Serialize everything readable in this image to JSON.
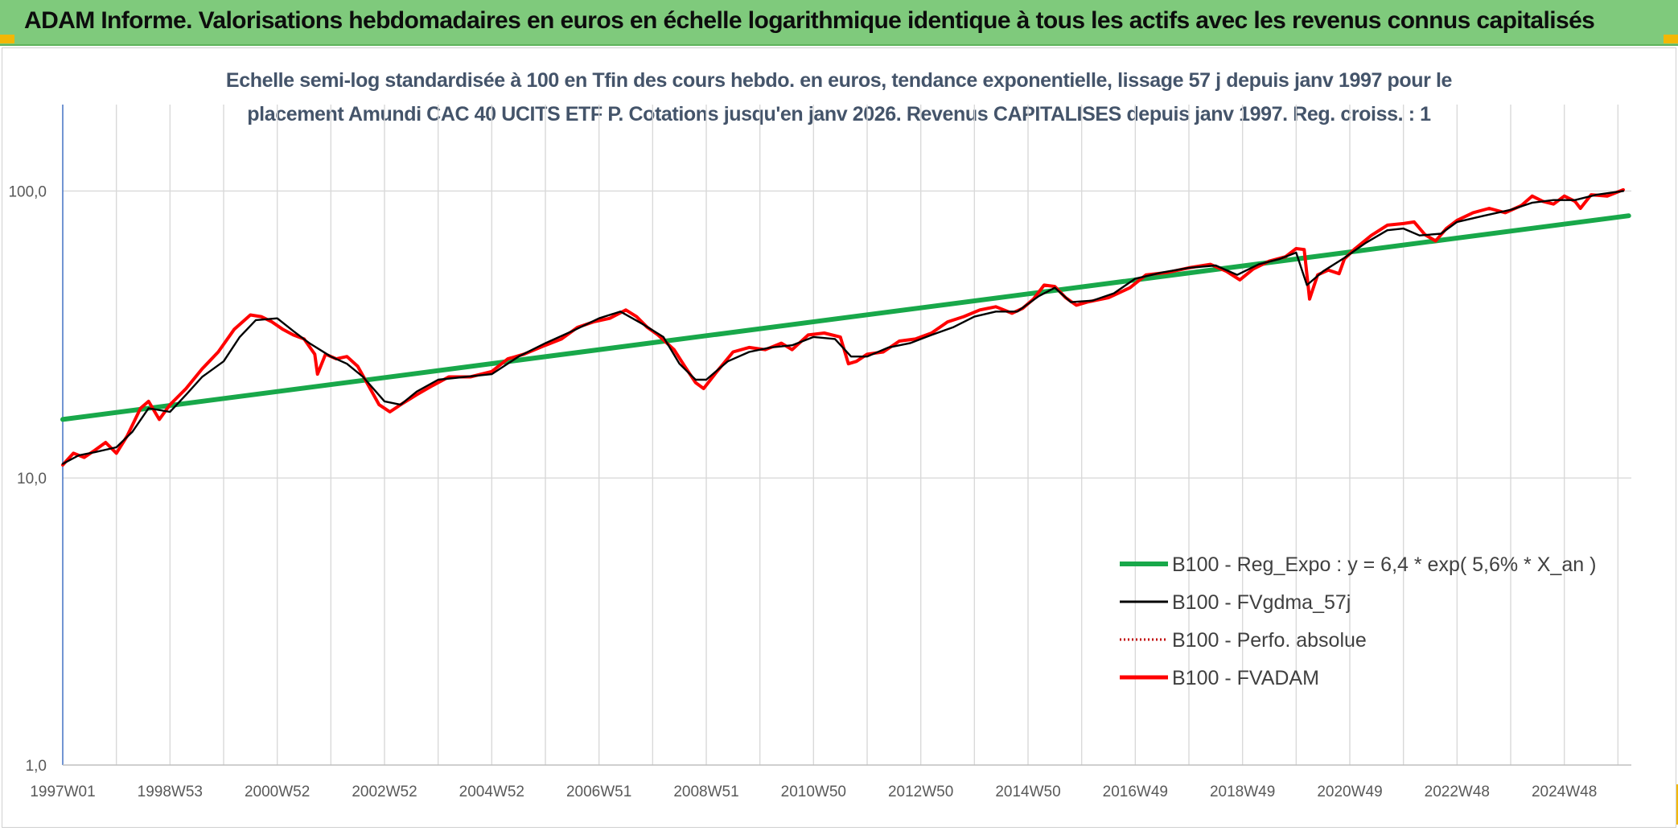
{
  "banner": {
    "title": "ADAM Informe. Valorisations hebdomadaires en euros en échelle logarithmique identique à tous les actifs avec les revenus connus capitalisés"
  },
  "chart_data": {
    "type": "line",
    "title_line1": "Echelle semi-log standardisée à 100 en Tfin des cours hebdo. en euros, tendance exponentielle, lissage 57 j depuis janv 1997 pour le",
    "title_line2": "placement Amundi CAC 40 UCITS ETF P. Cotations jusqu'en janv 2026. Revenus CAPITALISES depuis janv 1997. Reg. croiss. : 1",
    "y_scale": "log",
    "ylim": [
      1,
      200
    ],
    "xlim": [
      1997.0,
      2026.25
    ],
    "y_ticks": [
      {
        "value": 100,
        "label": "100,0"
      },
      {
        "value": 10,
        "label": "10,0"
      },
      {
        "value": 1,
        "label": "1,0"
      }
    ],
    "x_ticks": [
      {
        "value": 1997.0,
        "label": "1997W01"
      },
      {
        "value": 1999.0,
        "label": "1998W53"
      },
      {
        "value": 2001.0,
        "label": "2000W52"
      },
      {
        "value": 2003.0,
        "label": "2002W52"
      },
      {
        "value": 2005.0,
        "label": "2004W52"
      },
      {
        "value": 2007.0,
        "label": "2006W51"
      },
      {
        "value": 2009.0,
        "label": "2008W51"
      },
      {
        "value": 2011.0,
        "label": "2010W50"
      },
      {
        "value": 2013.0,
        "label": "2012W50"
      },
      {
        "value": 2015.0,
        "label": "2014W50"
      },
      {
        "value": 2017.0,
        "label": "2016W49"
      },
      {
        "value": 2019.0,
        "label": "2018W49"
      },
      {
        "value": 2021.0,
        "label": "2020W49"
      },
      {
        "value": 2023.0,
        "label": "2022W48"
      },
      {
        "value": 2025.0,
        "label": "2024W48"
      }
    ],
    "grid": true,
    "legend_position": "right-center",
    "series": [
      {
        "name": "B100 - Reg_Expo : y = 6,4 * exp( 5,6% *  X_an )",
        "color": "#18a84a",
        "style": "solid",
        "x": [
          1997.0,
          2026.2
        ],
        "y": [
          16.0,
          82.0
        ]
      },
      {
        "name": "B100 - FVgdma_57j",
        "color": "#000000",
        "style": "solid",
        "x": [
          1997.0,
          1997.3,
          1997.6,
          1998.0,
          1998.3,
          1998.6,
          1999.0,
          1999.3,
          1999.6,
          2000.0,
          2000.3,
          2000.6,
          2001.0,
          2001.3,
          2001.6,
          2002.0,
          2002.3,
          2002.6,
          2003.0,
          2003.3,
          2003.6,
          2004.0,
          2004.5,
          2005.0,
          2005.5,
          2006.0,
          2006.5,
          2007.0,
          2007.4,
          2007.8,
          2008.2,
          2008.5,
          2008.8,
          2009.0,
          2009.4,
          2009.8,
          2010.2,
          2010.6,
          2011.0,
          2011.4,
          2011.7,
          2012.0,
          2012.4,
          2012.8,
          2013.2,
          2013.6,
          2014.0,
          2014.4,
          2014.8,
          2015.2,
          2015.5,
          2015.8,
          2016.2,
          2016.6,
          2017.0,
          2017.5,
          2018.0,
          2018.5,
          2018.9,
          2019.3,
          2019.7,
          2020.0,
          2020.2,
          2020.5,
          2020.9,
          2021.3,
          2021.7,
          2022.0,
          2022.3,
          2022.7,
          2023.0,
          2023.5,
          2024.0,
          2024.4,
          2024.8,
          2025.2,
          2025.6,
          2026.1
        ],
        "y": [
          11.2,
          12.0,
          12.3,
          12.8,
          14.5,
          17.5,
          17.0,
          19.5,
          22.5,
          25.5,
          31.0,
          35.5,
          36.0,
          32.5,
          29.5,
          26.5,
          25.0,
          22.5,
          18.5,
          18.0,
          20.0,
          22.0,
          22.5,
          23.0,
          26.5,
          29.5,
          32.5,
          36.0,
          38.0,
          34.5,
          31.0,
          25.0,
          22.0,
          22.0,
          25.5,
          27.5,
          28.5,
          29.0,
          31.0,
          30.5,
          26.5,
          26.5,
          28.5,
          29.5,
          31.5,
          33.5,
          36.5,
          38.0,
          38.0,
          43.0,
          46.0,
          41.0,
          41.5,
          44.0,
          49.5,
          52.0,
          54.0,
          55.0,
          51.0,
          55.5,
          58.0,
          61.0,
          47.0,
          52.5,
          58.5,
          66.0,
          73.0,
          74.0,
          70.0,
          71.0,
          78.0,
          82.0,
          86.0,
          91.0,
          93.0,
          93.0,
          97.0,
          100.0
        ]
      },
      {
        "name": "B100 - Perfo. absolue",
        "color": "#c00000",
        "style": "dotted",
        "x": [],
        "y": []
      },
      {
        "name": "B100 - FVADAM",
        "color": "#ff0000",
        "style": "solid",
        "x": [
          1997.0,
          1997.2,
          1997.4,
          1997.6,
          1997.8,
          1998.0,
          1998.2,
          1998.45,
          1998.6,
          1998.8,
          1999.0,
          1999.3,
          1999.6,
          1999.9,
          2000.2,
          2000.5,
          2000.7,
          2000.9,
          2001.1,
          2001.3,
          2001.5,
          2001.7,
          2001.75,
          2001.9,
          2002.1,
          2002.3,
          2002.5,
          2002.7,
          2002.9,
          2003.1,
          2003.3,
          2003.6,
          2003.9,
          2004.2,
          2004.6,
          2005.0,
          2005.3,
          2005.6,
          2006.0,
          2006.3,
          2006.6,
          2006.9,
          2007.2,
          2007.5,
          2007.7,
          2007.9,
          2008.1,
          2008.4,
          2008.6,
          2008.8,
          2008.95,
          2009.2,
          2009.5,
          2009.8,
          2010.1,
          2010.4,
          2010.6,
          2010.9,
          2011.2,
          2011.5,
          2011.65,
          2011.8,
          2012.0,
          2012.3,
          2012.6,
          2012.9,
          2013.2,
          2013.5,
          2013.8,
          2014.1,
          2014.4,
          2014.7,
          2014.9,
          2015.1,
          2015.3,
          2015.5,
          2015.7,
          2015.9,
          2016.1,
          2016.5,
          2016.9,
          2017.2,
          2017.6,
          2018.0,
          2018.4,
          2018.7,
          2018.95,
          2019.2,
          2019.5,
          2019.8,
          2020.0,
          2020.15,
          2020.25,
          2020.4,
          2020.6,
          2020.8,
          2020.9,
          2021.1,
          2021.4,
          2021.7,
          2022.0,
          2022.2,
          2022.4,
          2022.6,
          2022.8,
          2023.0,
          2023.3,
          2023.6,
          2023.9,
          2024.2,
          2024.4,
          2024.6,
          2024.8,
          2025.0,
          2025.2,
          2025.3,
          2025.5,
          2025.8,
          2026.1
        ],
        "y": [
          11.1,
          12.2,
          11.8,
          12.5,
          13.3,
          12.2,
          14.0,
          17.5,
          18.5,
          16.0,
          18.0,
          20.5,
          24.0,
          27.5,
          33.0,
          37.0,
          36.5,
          35.0,
          33.0,
          31.5,
          30.5,
          27.0,
          23.0,
          27.0,
          26.0,
          26.5,
          24.5,
          21.0,
          18.0,
          17.0,
          18.0,
          19.5,
          21.0,
          22.5,
          22.5,
          23.5,
          26.0,
          27.0,
          29.0,
          30.5,
          33.5,
          35.0,
          36.0,
          38.5,
          36.5,
          33.5,
          31.5,
          28.0,
          24.5,
          21.5,
          20.5,
          23.5,
          27.5,
          28.5,
          28.0,
          29.5,
          28.0,
          31.5,
          32.0,
          31.0,
          25.0,
          25.5,
          27.0,
          27.5,
          30.0,
          30.5,
          32.0,
          35.0,
          36.5,
          38.5,
          39.5,
          37.5,
          39.0,
          42.0,
          47.0,
          46.5,
          42.5,
          40.0,
          41.0,
          42.5,
          46.0,
          51.0,
          52.0,
          54.0,
          55.5,
          52.5,
          49.0,
          53.5,
          57.0,
          59.0,
          63.0,
          62.5,
          42.0,
          51.0,
          53.0,
          51.5,
          58.0,
          63.0,
          70.0,
          76.0,
          77.0,
          78.0,
          70.5,
          67.0,
          74.0,
          79.0,
          84.0,
          87.0,
          84.0,
          89.0,
          96.0,
          92.0,
          90.0,
          96.0,
          92.0,
          87.0,
          97.0,
          96.0,
          101.0
        ]
      }
    ]
  }
}
